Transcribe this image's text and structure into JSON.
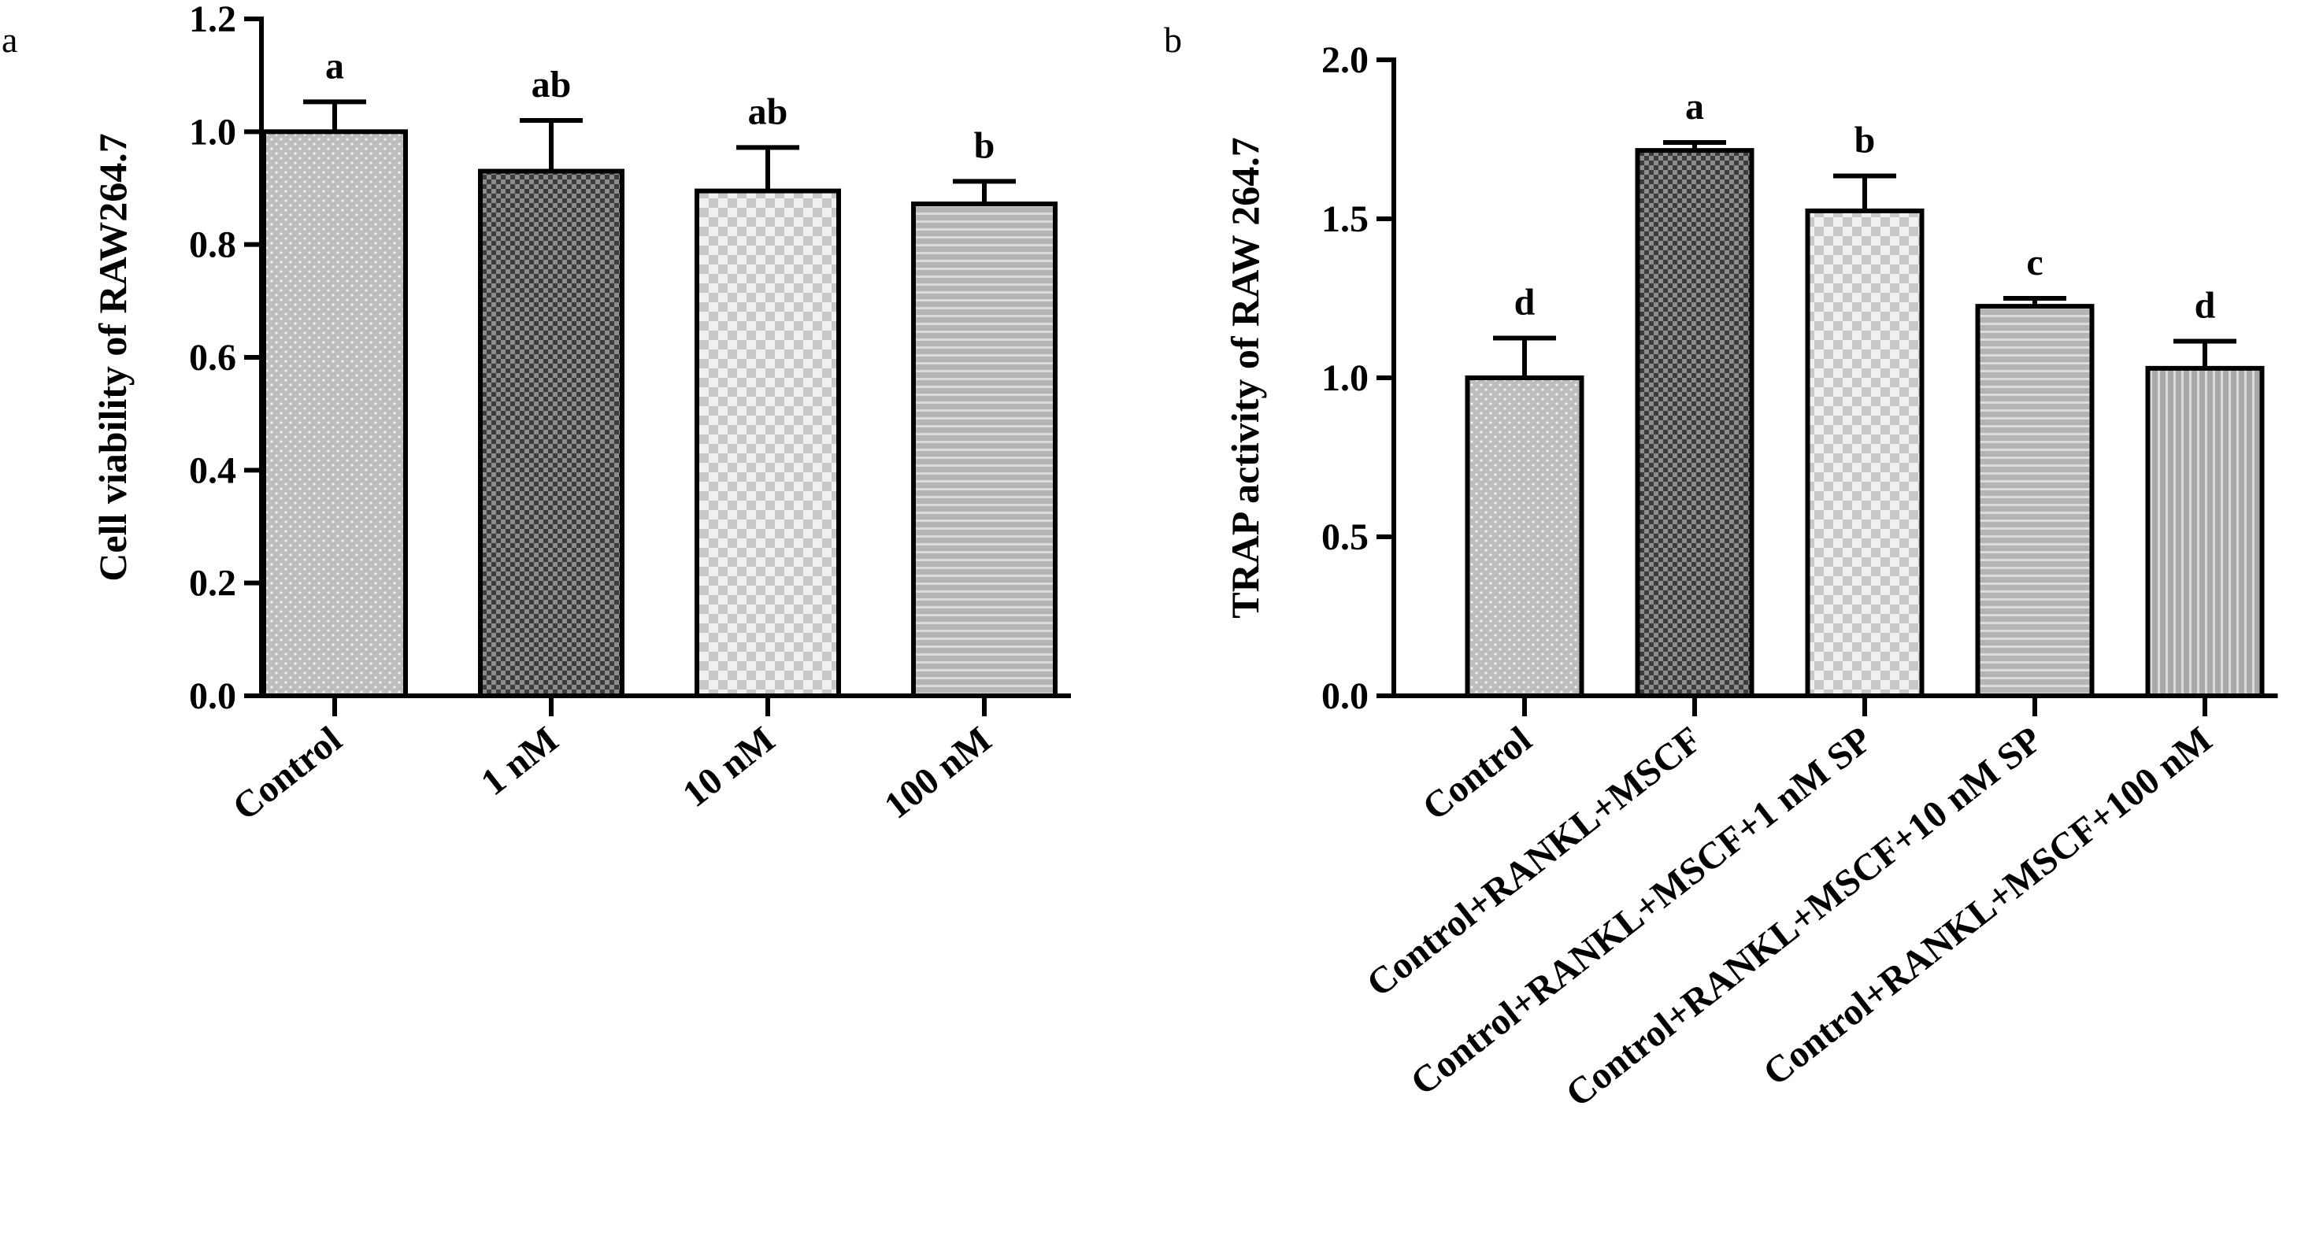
{
  "panels": [
    "a",
    "b"
  ],
  "chart_data": [
    {
      "type": "bar",
      "panel": "a",
      "ylabel": "Cell viability of RAW264.7",
      "xlabel": "",
      "ylim": [
        0,
        1.2
      ],
      "yticks": [
        "0.0",
        "0.2",
        "0.4",
        "0.6",
        "0.8",
        "1.0",
        "1.2"
      ],
      "categories": [
        "Control",
        "1 nM",
        "10 nM",
        "100 nM"
      ],
      "values": [
        1.0,
        0.93,
        0.895,
        0.872
      ],
      "errors": [
        0.053,
        0.09,
        0.077,
        0.04
      ],
      "significance": [
        "a",
        "ab",
        "ab",
        "b"
      ],
      "patterns": [
        "dots",
        "dark-checker",
        "light-checker",
        "horizontal-lines"
      ]
    },
    {
      "type": "bar",
      "panel": "b",
      "ylabel": "TRAP activity of RAW 264.7",
      "xlabel": "",
      "ylim": [
        0,
        2.0
      ],
      "yticks": [
        "0.0",
        "0.5",
        "1.0",
        "1.5",
        "2.0"
      ],
      "categories": [
        "Control",
        "Control+RANKL+MSCF",
        "Control+RANKL+MSCF+1 nM SP",
        "Control+RANKL+MSCF+10 nM SP",
        "Control+RANKL+MSCF+100 nM"
      ],
      "values": [
        1.0,
        1.715,
        1.525,
        1.225,
        1.03
      ],
      "errors": [
        0.125,
        0.025,
        0.11,
        0.025,
        0.085
      ],
      "significance": [
        "d",
        "a",
        "b",
        "c",
        "d"
      ],
      "patterns": [
        "dots",
        "dark-checker",
        "light-checker",
        "horizontal-lines",
        "vertical-lines"
      ]
    }
  ],
  "colors": {
    "axis": "#000000",
    "bar_base": "#c8c8c8",
    "dark_fill": "#4a4a4a"
  }
}
